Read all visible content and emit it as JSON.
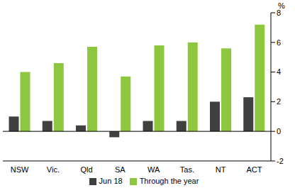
{
  "chart_data": {
    "type": "bar",
    "y_label": "%",
    "categories": [
      "NSW",
      "Vic.",
      "Qld",
      "SA",
      "WA",
      "Tas.",
      "NT",
      "ACT"
    ],
    "series": [
      {
        "name": "Jun 18",
        "color": "#404040",
        "values": [
          1.0,
          0.7,
          0.4,
          -0.4,
          0.7,
          0.7,
          2.0,
          2.3
        ]
      },
      {
        "name": "Through the year",
        "color": "#8dc63f",
        "values": [
          4.0,
          4.6,
          5.7,
          3.7,
          5.8,
          6.0,
          5.6,
          7.2
        ]
      }
    ],
    "ylim": [
      -2,
      8
    ],
    "yticks": [
      -2,
      0,
      2,
      4,
      6,
      8
    ],
    "grid": false,
    "legend": "bottom"
  }
}
